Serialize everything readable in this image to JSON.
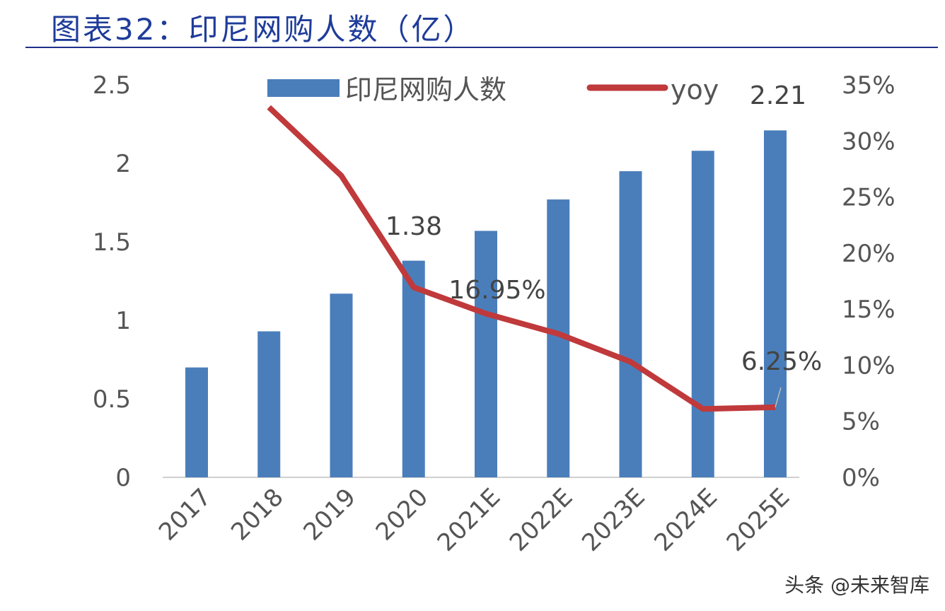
{
  "title": "图表32：印尼网购人数（亿）",
  "watermark": "头条 @未来智库",
  "chart_data": {
    "type": "bar+line",
    "title": "图表32：印尼网购人数（亿）",
    "categories": [
      "2017",
      "2018",
      "2019",
      "2020",
      "2021E",
      "2022E",
      "2023E",
      "2024E",
      "2025E"
    ],
    "series": [
      {
        "name": "印尼网购人数",
        "type": "bar",
        "axis": "left",
        "color": "#4a7ebb",
        "values": [
          0.7,
          0.93,
          1.17,
          1.38,
          1.57,
          1.77,
          1.95,
          2.08,
          2.21
        ]
      },
      {
        "name": "yoy",
        "type": "line",
        "axis": "right",
        "color": "#c0393b",
        "values": [
          null,
          33.0,
          26.9,
          16.95,
          14.6,
          12.8,
          10.3,
          6.1,
          6.25
        ]
      }
    ],
    "left_axis": {
      "ylim": [
        0,
        2.5
      ],
      "ticks": [
        "0",
        "0.5",
        "1",
        "1.5",
        "2",
        "2.5"
      ]
    },
    "right_axis": {
      "ylim": [
        0,
        35
      ],
      "ticks": [
        "0%",
        "5%",
        "10%",
        "15%",
        "20%",
        "25%",
        "30%",
        "35%"
      ]
    },
    "data_labels": [
      {
        "series": "印尼网购人数",
        "category": "2020",
        "text": "1.38"
      },
      {
        "series": "印尼网购人数",
        "category": "2025E",
        "text": "2.21"
      },
      {
        "series": "yoy",
        "category": "2020",
        "text": "16.95%"
      },
      {
        "series": "yoy",
        "category": "2025E",
        "text": "6.25%"
      }
    ],
    "legend": {
      "placement": "top",
      "entries": [
        "印尼网购人数",
        "yoy"
      ]
    },
    "grid": false
  }
}
